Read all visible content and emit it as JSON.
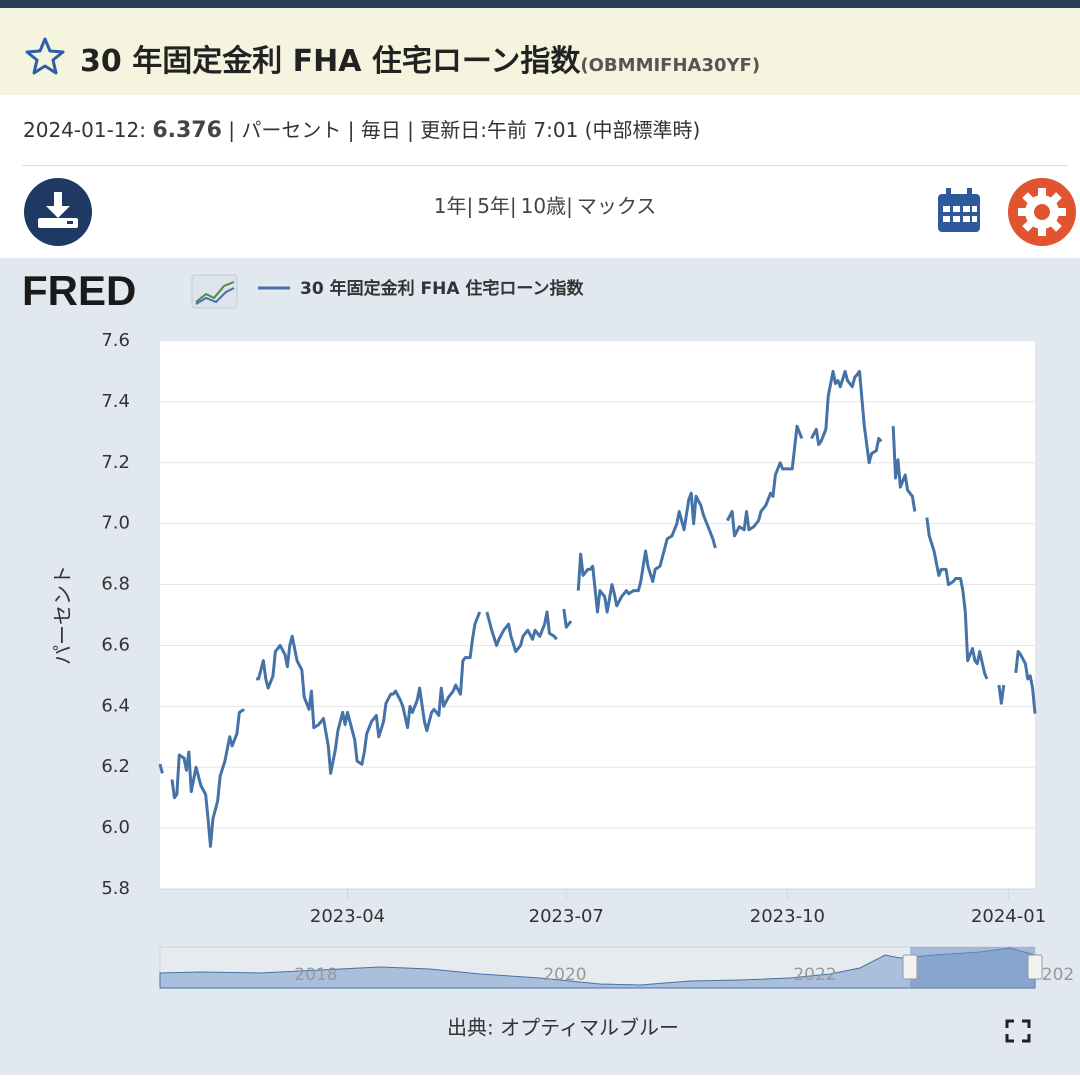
{
  "header": {
    "title": "30 年固定金利 FHA 住宅ローン指数",
    "series_id": "(OBMMIFHA30YF)"
  },
  "info": {
    "date": "2024-01-12:",
    "value": 6.376,
    "details": "| パーセント | 毎日 | 更新日:午前 7:01 (中部標準時)"
  },
  "ranges": [
    "1年|",
    "5年|",
    "10歳|",
    "マックス"
  ],
  "logo": "FRED",
  "navigator": {
    "labels": [
      "2018",
      "2020",
      "2022",
      "202"
    ]
  },
  "source": "出典: オプティマルブルー",
  "chart_data": {
    "type": "line",
    "ylabel": "パーセント",
    "xlim": [
      "2023-01-13",
      "2024-01-12"
    ],
    "xticks": [
      "2023-04",
      "2023-07",
      "2023-10",
      "2024-01"
    ],
    "ylim": [
      5.8,
      7.6
    ],
    "yticks": [
      5.8,
      {
        "value": 6,
        "label": "6.0"
      },
      6.2,
      6.4,
      6.6,
      6.8,
      {
        "value": 7,
        "label": "7.0"
      },
      7.2,
      7.4,
      7.6
    ],
    "grid": true,
    "x": [
      "2023-01-13",
      "2023-01-14",
      "2023-01-16",
      "2023-01-18",
      "2023-01-19",
      "2023-01-20",
      "2023-01-21",
      "2023-01-23",
      "2023-01-24",
      "2023-01-25",
      "2023-01-26",
      "2023-01-28",
      "2023-01-30",
      "2023-02-01",
      "2023-02-02",
      "2023-02-03",
      "2023-02-04",
      "2023-02-06",
      "2023-02-07",
      "2023-02-09",
      "2023-02-11",
      "2023-02-12",
      "2023-02-14",
      "2023-02-15",
      "2023-02-17",
      "2023-02-19",
      "2023-02-22",
      "2023-02-23",
      "2023-02-25",
      "2023-02-26",
      "2023-02-27",
      "2023-03-01",
      "2023-03-02",
      "2023-03-04",
      "2023-03-06",
      "2023-03-07",
      "2023-03-08",
      "2023-03-09",
      "2023-03-11",
      "2023-03-13",
      "2023-03-14",
      "2023-03-16",
      "2023-03-17",
      "2023-03-18",
      "2023-03-20",
      "2023-03-21",
      "2023-03-22",
      "2023-03-24",
      "2023-03-25",
      "2023-03-27",
      "2023-03-28",
      "2023-03-30",
      "2023-03-31",
      "2023-04-01",
      "2023-04-03",
      "2023-04-04",
      "2023-04-05",
      "2023-04-07",
      "2023-04-08",
      "2023-04-09",
      "2023-04-11",
      "2023-04-13",
      "2023-04-14",
      "2023-04-16",
      "2023-04-17",
      "2023-04-19",
      "2023-04-20",
      "2023-04-21",
      "2023-04-23",
      "2023-04-24",
      "2023-04-26",
      "2023-04-27",
      "2023-04-28",
      "2023-04-30",
      "2023-05-01",
      "2023-05-03",
      "2023-05-04",
      "2023-05-06",
      "2023-05-07",
      "2023-05-09",
      "2023-05-10",
      "2023-05-11",
      "2023-05-13",
      "2023-05-15",
      "2023-05-16",
      "2023-05-18",
      "2023-05-19",
      "2023-05-20",
      "2023-05-22",
      "2023-05-23",
      "2023-05-24",
      "2023-05-26",
      "2023-05-27",
      "2023-05-29",
      "2023-05-31",
      "2023-06-02",
      "2023-06-03",
      "2023-06-05",
      "2023-06-07",
      "2023-06-08",
      "2023-06-10",
      "2023-06-12",
      "2023-06-13",
      "2023-06-15",
      "2023-06-17",
      "2023-06-18",
      "2023-06-20",
      "2023-06-22",
      "2023-06-23",
      "2023-06-24",
      "2023-06-26",
      "2023-06-27",
      "2023-06-28",
      "2023-06-30",
      "2023-07-01",
      "2023-07-02",
      "2023-07-03",
      "2023-07-04",
      "2023-07-06",
      "2023-07-07",
      "2023-07-08",
      "2023-07-10",
      "2023-07-11",
      "2023-07-12",
      "2023-07-14",
      "2023-07-15",
      "2023-07-17",
      "2023-07-18",
      "2023-07-20",
      "2023-07-21",
      "2023-07-22",
      "2023-07-24",
      "2023-07-26",
      "2023-07-27",
      "2023-07-29",
      "2023-07-31",
      "2023-08-01",
      "2023-08-03",
      "2023-08-04",
      "2023-08-06",
      "2023-08-07",
      "2023-08-09",
      "2023-08-11",
      "2023-08-12",
      "2023-08-14",
      "2023-08-16",
      "2023-08-17",
      "2023-08-19",
      "2023-08-21",
      "2023-08-22",
      "2023-08-23",
      "2023-08-24",
      "2023-08-26",
      "2023-08-27",
      "2023-08-29",
      "2023-08-31",
      "2023-09-01",
      "2023-09-03",
      "2023-09-06",
      "2023-09-08",
      "2023-09-09",
      "2023-09-11",
      "2023-09-13",
      "2023-09-14",
      "2023-09-15",
      "2023-09-17",
      "2023-09-19",
      "2023-09-20",
      "2023-09-22",
      "2023-09-24",
      "2023-09-25",
      "2023-09-26",
      "2023-09-28",
      "2023-09-29",
      "2023-10-01",
      "2023-10-03",
      "2023-10-04",
      "2023-10-05",
      "2023-10-07",
      "2023-10-09",
      "2023-10-11",
      "2023-10-13",
      "2023-10-14",
      "2023-10-15",
      "2023-10-17",
      "2023-10-18",
      "2023-10-20",
      "2023-10-21",
      "2023-10-22",
      "2023-10-23",
      "2023-10-25",
      "2023-10-26",
      "2023-10-28",
      "2023-10-29",
      "2023-10-31",
      "2023-11-01",
      "2023-11-02",
      "2023-11-04",
      "2023-11-05",
      "2023-11-07",
      "2023-11-08",
      "2023-11-09",
      "2023-11-11",
      "2023-11-14",
      "2023-11-15",
      "2023-11-16",
      "2023-11-17",
      "2023-11-19",
      "2023-11-20",
      "2023-11-22",
      "2023-11-23",
      "2023-11-25",
      "2023-11-28",
      "2023-11-29",
      "2023-12-01",
      "2023-12-03",
      "2023-12-04",
      "2023-12-06",
      "2023-12-07",
      "2023-12-09",
      "2023-12-10",
      "2023-12-12",
      "2023-12-13",
      "2023-12-14",
      "2023-12-15",
      "2023-12-17",
      "2023-12-18",
      "2023-12-19",
      "2023-12-20",
      "2023-12-22",
      "2023-12-23",
      "2023-12-25",
      "2023-12-28",
      "2023-12-29",
      "2023-12-30",
      "2024-01-02",
      "2024-01-04",
      "2024-01-05",
      "2024-01-06",
      "2024-01-08",
      "2024-01-09",
      "2024-01-10",
      "2024-01-11",
      "2024-01-12"
    ],
    "series": [
      {
        "name": "30 年固定金利 FHA 住宅ローン指数",
        "color": "#4572a7",
        "values": [
          6.21,
          6.18,
          null,
          6.16,
          6.1,
          6.11,
          6.24,
          6.23,
          6.19,
          6.25,
          6.12,
          6.2,
          6.14,
          6.11,
          6.03,
          5.94,
          6.03,
          6.09,
          6.17,
          6.22,
          6.3,
          6.27,
          6.31,
          6.38,
          6.39,
          null,
          6.49,
          6.49,
          6.55,
          6.49,
          6.46,
          6.5,
          6.58,
          6.6,
          6.57,
          6.53,
          6.6,
          6.63,
          6.55,
          6.52,
          6.43,
          6.39,
          6.45,
          6.33,
          6.34,
          6.35,
          6.36,
          6.27,
          6.18,
          6.26,
          6.32,
          6.38,
          6.34,
          6.38,
          6.32,
          6.29,
          6.22,
          6.21,
          6.25,
          6.31,
          6.35,
          6.37,
          6.3,
          6.35,
          6.41,
          6.44,
          6.44,
          6.45,
          6.42,
          6.4,
          6.33,
          6.4,
          6.38,
          6.42,
          6.46,
          6.35,
          6.32,
          6.38,
          6.39,
          6.37,
          6.46,
          6.4,
          6.43,
          6.45,
          6.47,
          6.44,
          6.55,
          6.56,
          6.56,
          6.62,
          6.67,
          6.71,
          null,
          6.71,
          6.65,
          6.6,
          6.62,
          6.65,
          6.67,
          6.63,
          6.58,
          6.6,
          6.63,
          6.65,
          6.62,
          6.65,
          6.63,
          6.67,
          6.71,
          6.64,
          6.63,
          6.62,
          null,
          6.72,
          6.66,
          6.67,
          6.68,
          null,
          6.78,
          6.9,
          6.83,
          6.85,
          6.85,
          6.86,
          6.71,
          6.78,
          6.76,
          6.71,
          6.8,
          6.77,
          6.73,
          6.76,
          6.78,
          6.77,
          6.78,
          6.78,
          6.81,
          6.91,
          6.86,
          6.81,
          6.85,
          6.86,
          6.92,
          6.95,
          6.96,
          7.0,
          7.04,
          6.98,
          7.08,
          7.1,
          7.0,
          7.09,
          7.06,
          7.03,
          6.99,
          6.95,
          6.92,
          null,
          7.01,
          7.04,
          6.96,
          6.99,
          6.98,
          7.04,
          6.98,
          6.99,
          7.01,
          7.04,
          7.06,
          7.1,
          7.09,
          7.16,
          7.2,
          7.18,
          7.18,
          7.18,
          7.25,
          7.32,
          7.28,
          null,
          7.28,
          7.31,
          7.26,
          7.27,
          7.31,
          7.42,
          7.5,
          7.46,
          7.47,
          7.45,
          7.5,
          7.47,
          7.45,
          7.48,
          7.5,
          7.41,
          7.32,
          7.2,
          7.23,
          7.24,
          7.28,
          7.27,
          null,
          7.32,
          7.15,
          7.21,
          7.12,
          7.16,
          7.11,
          7.09,
          7.04,
          null,
          7.02,
          6.96,
          6.91,
          6.83,
          6.85,
          6.85,
          6.8,
          6.81,
          6.82,
          6.82,
          6.78,
          6.71,
          6.55,
          6.59,
          6.55,
          6.54,
          6.58,
          6.51,
          6.49,
          null,
          6.47,
          6.41,
          6.47,
          null,
          6.51,
          6.58,
          6.57,
          6.54,
          6.49,
          6.5,
          6.46,
          6.376
        ]
      }
    ]
  }
}
